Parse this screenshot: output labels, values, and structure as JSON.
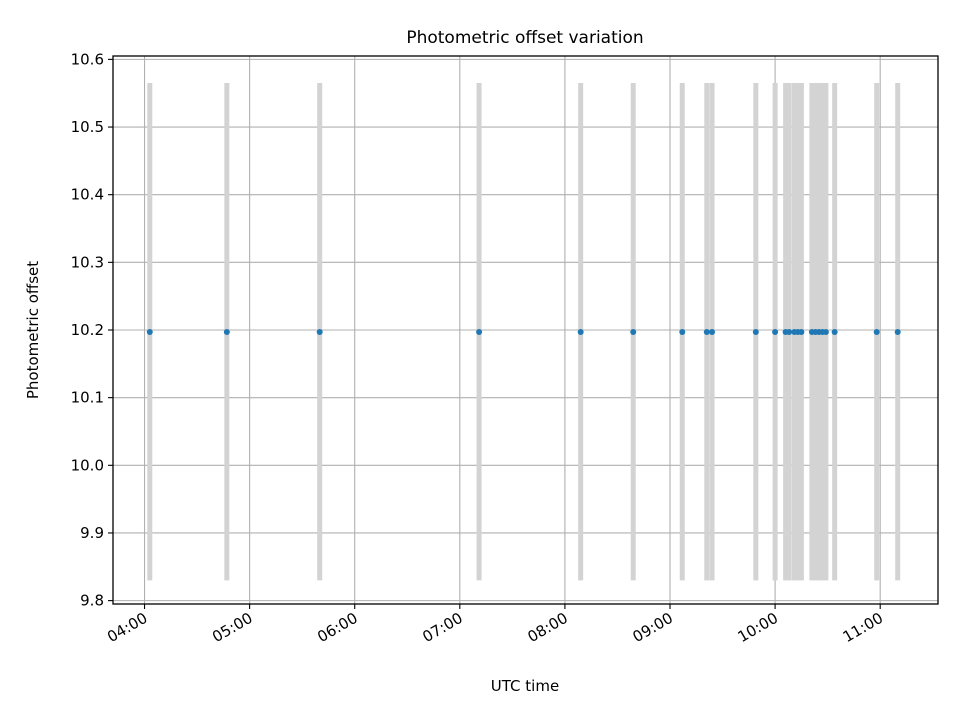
{
  "chart_data": {
    "type": "scatter",
    "title": "Photometric offset variation",
    "xlabel": "UTC time",
    "ylabel": "Photometric offset",
    "x_unit": "UTC time (HH:MM)",
    "xlim": [
      "03:42",
      "11:33"
    ],
    "ylim": [
      9.795,
      10.605
    ],
    "xticks": [
      "04:00",
      "05:00",
      "06:00",
      "07:00",
      "08:00",
      "09:00",
      "10:00",
      "11:00"
    ],
    "yticks": [
      9.8,
      9.9,
      10.0,
      10.1,
      10.2,
      10.3,
      10.4,
      10.5,
      10.6
    ],
    "grid": true,
    "legend": "none",
    "series": [
      {
        "color": "#1f77b4",
        "points": [
          {
            "x": "04:03",
            "y": 10.197
          },
          {
            "x": "04:47",
            "y": 10.197
          },
          {
            "x": "05:40",
            "y": 10.197
          },
          {
            "x": "07:11",
            "y": 10.197
          },
          {
            "x": "08:09",
            "y": 10.197
          },
          {
            "x": "08:39",
            "y": 10.197
          },
          {
            "x": "09:07",
            "y": 10.197
          },
          {
            "x": "09:21",
            "y": 10.197
          },
          {
            "x": "09:24",
            "y": 10.197
          },
          {
            "x": "09:49",
            "y": 10.197
          },
          {
            "x": "10:00",
            "y": 10.197
          },
          {
            "x": "10:06",
            "y": 10.197
          },
          {
            "x": "10:08",
            "y": 10.197
          },
          {
            "x": "10:11",
            "y": 10.197
          },
          {
            "x": "10:13",
            "y": 10.197
          },
          {
            "x": "10:15",
            "y": 10.197
          },
          {
            "x": "10:21",
            "y": 10.197
          },
          {
            "x": "10:23",
            "y": 10.197
          },
          {
            "x": "10:25",
            "y": 10.197
          },
          {
            "x": "10:27",
            "y": 10.197
          },
          {
            "x": "10:29",
            "y": 10.197
          },
          {
            "x": "10:34",
            "y": 10.197
          },
          {
            "x": "10:58",
            "y": 10.197
          },
          {
            "x": "11:10",
            "y": 10.197
          }
        ]
      }
    ],
    "error_bars": {
      "color": "#d3d3d3",
      "low": 9.83,
      "high": 10.565
    }
  }
}
